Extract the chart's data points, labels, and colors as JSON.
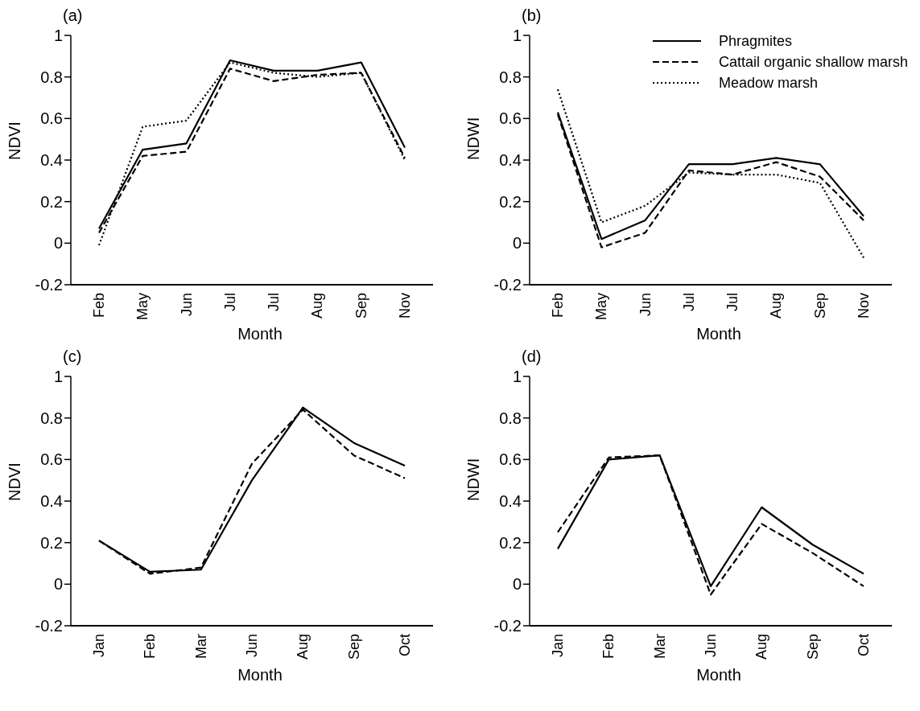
{
  "chart_data": [
    {
      "type": "line",
      "title": "(a)",
      "xlabel": "Month",
      "ylabel": "NDVI",
      "categories": [
        "Feb",
        "May",
        "Jun",
        "Jul",
        "Jul",
        "Aug",
        "Sep",
        "Nov"
      ],
      "ylim": [
        -0.2,
        1
      ],
      "yticks": [
        -0.2,
        0,
        0.2,
        0.4,
        0.6,
        0.8,
        1
      ],
      "grid": false,
      "legend": false,
      "marker": "none",
      "series": [
        {
          "color": "#000000",
          "line_style": "solid",
          "values": [
            0.07,
            0.45,
            0.48,
            0.88,
            0.83,
            0.83,
            0.87,
            0.46
          ]
        },
        {
          "color": "#000000",
          "line_style": "dashed",
          "values": [
            0.05,
            0.42,
            0.44,
            0.84,
            0.78,
            0.81,
            0.82,
            0.41
          ]
        },
        {
          "color": "#000000",
          "line_style": "dotted",
          "values": [
            -0.01,
            0.56,
            0.59,
            0.87,
            0.82,
            0.8,
            0.82,
            0.4
          ]
        }
      ]
    },
    {
      "type": "line",
      "title": "(b)",
      "xlabel": "Month",
      "ylabel": "NDWI",
      "categories": [
        "Feb",
        "May",
        "Jun",
        "Jul",
        "Jul",
        "Aug",
        "Sep",
        "Nov"
      ],
      "ylim": [
        -0.2,
        1
      ],
      "yticks": [
        -0.2,
        0,
        0.2,
        0.4,
        0.6,
        0.8,
        1
      ],
      "grid": false,
      "legend": "top right",
      "marker": "none",
      "series": [
        {
          "name": "Phragmites",
          "color": "#000000",
          "line_style": "solid",
          "values": [
            0.63,
            0.02,
            0.11,
            0.38,
            0.38,
            0.41,
            0.38,
            0.13
          ]
        },
        {
          "name": "Cattail organic shallow marsh",
          "color": "#000000",
          "line_style": "dashed",
          "values": [
            0.62,
            -0.02,
            0.05,
            0.35,
            0.33,
            0.39,
            0.32,
            0.11
          ]
        },
        {
          "name": "Meadow marsh",
          "color": "#000000",
          "line_style": "dotted",
          "values": [
            0.74,
            0.1,
            0.18,
            0.34,
            0.33,
            0.33,
            0.29,
            -0.07
          ]
        }
      ]
    },
    {
      "type": "line",
      "title": "(c)",
      "xlabel": "Month",
      "ylabel": "NDVI",
      "categories": [
        "Jan",
        "Feb",
        "Mar",
        "Jun",
        "Aug",
        "Sep",
        "Oct"
      ],
      "ylim": [
        -0.2,
        1
      ],
      "yticks": [
        -0.2,
        0,
        0.2,
        0.4,
        0.6,
        0.8,
        1
      ],
      "grid": false,
      "legend": false,
      "marker": "none",
      "series": [
        {
          "color": "#000000",
          "line_style": "solid",
          "values": [
            0.21,
            0.06,
            0.07,
            0.5,
            0.85,
            0.68,
            0.57
          ]
        },
        {
          "color": "#000000",
          "line_style": "dashed",
          "values": [
            0.21,
            0.05,
            0.08,
            0.58,
            0.84,
            0.62,
            0.51
          ]
        }
      ]
    },
    {
      "type": "line",
      "title": "(d)",
      "xlabel": "Month",
      "ylabel": "NDWI",
      "categories": [
        "Jan",
        "Feb",
        "Mar",
        "Jun",
        "Aug",
        "Sep",
        "Oct"
      ],
      "ylim": [
        -0.2,
        1
      ],
      "yticks": [
        -0.2,
        0,
        0.2,
        0.4,
        0.6,
        0.8,
        1
      ],
      "grid": false,
      "legend": false,
      "marker": "none",
      "series": [
        {
          "color": "#000000",
          "line_style": "solid",
          "values": [
            0.17,
            0.6,
            0.62,
            -0.01,
            0.37,
            0.19,
            0.05
          ]
        },
        {
          "color": "#000000",
          "line_style": "dashed",
          "values": [
            0.25,
            0.61,
            0.62,
            -0.05,
            0.29,
            0.15,
            -0.01
          ]
        }
      ]
    }
  ]
}
